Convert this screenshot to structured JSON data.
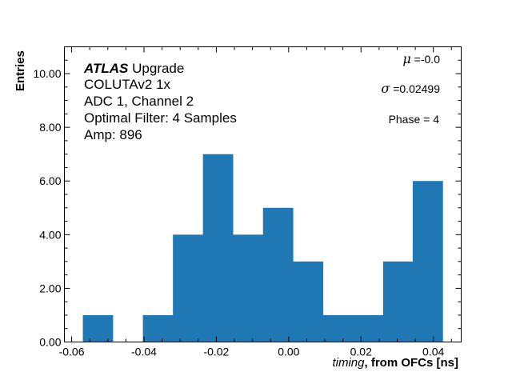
{
  "chart_data": {
    "type": "bar",
    "subtype": "histogram",
    "bin_edges": [
      -0.0569,
      -0.0486,
      -0.0403,
      -0.032,
      -0.0237,
      -0.0154,
      -0.0071,
      0.0012,
      0.0095,
      0.0178,
      0.0261,
      0.0343,
      0.0426
    ],
    "values": [
      1,
      0,
      1,
      4,
      7,
      4,
      5,
      3,
      1,
      1,
      3,
      6
    ],
    "bar_color": "#1f77b4",
    "xlim": [
      -0.062,
      0.0477
    ],
    "ylim": [
      0,
      11
    ],
    "xticks": [
      -0.06,
      -0.04,
      -0.02,
      0.0,
      0.02,
      0.04
    ],
    "xtick_labels": [
      "-0.06",
      "-0.04",
      "-0.02",
      "0.00",
      "0.02",
      "0.04"
    ],
    "yticks": [
      0,
      2,
      4,
      6,
      8,
      10
    ],
    "ytick_labels": [
      "0.00",
      "2.00",
      "4.00",
      "6.00",
      "8.00",
      "10.00"
    ],
    "xlabel_italic": "timing",
    "xlabel_rest": ", from OFCs [ns]",
    "ylabel": "Entries",
    "grid": false,
    "annotations": {
      "atlas": "ATLAS",
      "atlas_suffix": " Upgrade",
      "lines": [
        "COLUTAv2 1x",
        "ADC 1, Channel 2",
        "Optimal Filter: 4 Samples",
        "Amp: 896"
      ]
    },
    "stats": {
      "mu_symbol": "μ",
      "mu_text": " =-0.0",
      "sigma_symbol": "σ",
      "sigma_text": " =0.02499",
      "phase": "Phase = 4"
    }
  }
}
